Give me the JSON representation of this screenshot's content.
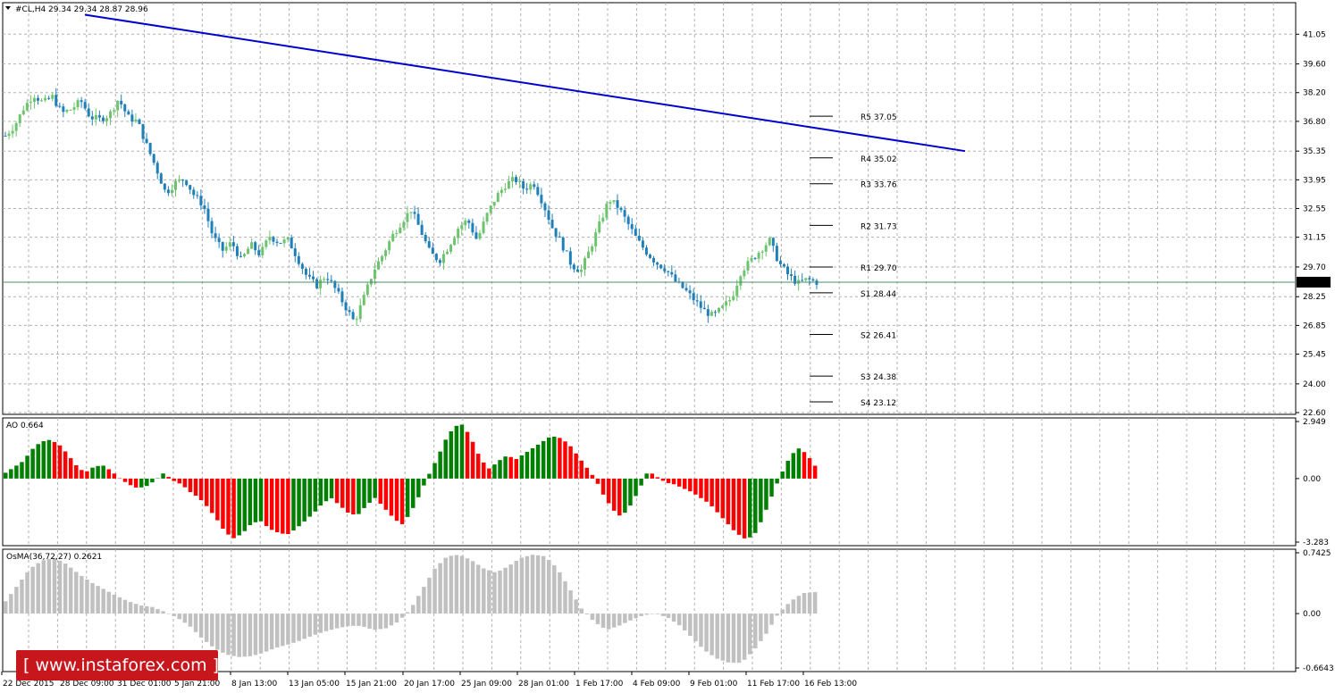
{
  "instrument_header": "#CL,H4  29.34 29.34 28.87 28.96",
  "last_price_label": "28.96",
  "logo_text": "[ www.instaforex.com ]",
  "colors": {
    "bull_candle": "#6ec36e",
    "bear_candle": "#1f7fb8",
    "trendline": "#0000cc",
    "ao_up": "#008000",
    "ao_down": "#ff0000",
    "osma": "#c0c0c0",
    "logo_bg": "#c8161d"
  },
  "pivots": [
    {
      "label": "R5 37.05",
      "value": 37.05
    },
    {
      "label": "R4 35.02",
      "value": 35.02
    },
    {
      "label": "R3 33.76",
      "value": 33.76
    },
    {
      "label": "R2 31.73",
      "value": 31.73
    },
    {
      "label": "R1 29.70",
      "value": 29.7
    },
    {
      "label": "S1 28.44",
      "value": 28.44
    },
    {
      "label": "S2 26.41",
      "value": 26.41
    },
    {
      "label": "S3 24.38",
      "value": 24.38
    },
    {
      "label": "S4 23.12",
      "value": 23.12
    }
  ],
  "x_axis_labels": [
    "22 Dec 2015",
    "28 Dec 09:00",
    "31 Dec 01:00",
    "5 Jan 21:00",
    "8 Jan 13:00",
    "13 Jan 05:00",
    "15 Jan 21:00",
    "20 Jan 17:00",
    "25 Jan 09:00",
    "28 Jan 01:00",
    "1 Feb 17:00",
    "4 Feb 09:00",
    "9 Feb 01:00",
    "11 Feb 17:00",
    "16 Feb 13:00"
  ],
  "chart_data": [
    {
      "type": "candlestick",
      "title": "#CL,H4  29.34 29.34 28.87 28.96",
      "ylim": [
        22.6,
        42.5
      ],
      "y_ticks": [
        "41.05",
        "39.60",
        "38.20",
        "36.80",
        "35.35",
        "33.95",
        "32.55",
        "31.15",
        "29.70",
        "28.25",
        "26.85",
        "25.45",
        "24.00",
        "22.60"
      ],
      "last_price": 28.96,
      "trendline": {
        "start": 42.0,
        "end": 35.35
      },
      "close_path": [
        36.1,
        36.6,
        37.5,
        38.1,
        37.7,
        38.0,
        37.2,
        37.4,
        37.8,
        37.0,
        36.9,
        37.1,
        37.9,
        37.0,
        36.8,
        35.6,
        34.5,
        33.3,
        33.8,
        34.0,
        33.2,
        32.7,
        31.2,
        30.5,
        30.9,
        30.0,
        30.8,
        30.3,
        31.2,
        30.9,
        31.0,
        30.1,
        29.2,
        28.8,
        29.3,
        28.6,
        27.8,
        27.0,
        28.2,
        29.5,
        30.3,
        31.2,
        31.9,
        32.5,
        31.5,
        30.4,
        30.0,
        30.7,
        31.6,
        32.0,
        31.0,
        32.2,
        33.1,
        33.7,
        34.0,
        33.5,
        33.8,
        32.8,
        31.6,
        30.8,
        29.8,
        29.5,
        30.6,
        31.8,
        33.0,
        32.6,
        31.8,
        31.0,
        30.4,
        29.9,
        29.6,
        29.0,
        28.6,
        28.1,
        27.6,
        27.3,
        27.7,
        28.2,
        29.5,
        30.0,
        30.5,
        31.0,
        29.9,
        29.3,
        28.9,
        29.1,
        28.96
      ]
    },
    {
      "type": "bar",
      "title": "AO 0.664",
      "ylim": [
        -3.283,
        2.949
      ],
      "y_ticks": [
        "2.949",
        "0.00",
        "-3.283"
      ],
      "value_path": [
        0.3,
        0.6,
        0.9,
        1.5,
        1.9,
        2.0,
        1.8,
        1.3,
        0.7,
        0.3,
        0.6,
        0.7,
        0.4,
        0.0,
        -0.3,
        -0.5,
        -0.4,
        -0.1,
        0.3,
        -0.1,
        -0.3,
        -0.7,
        -1.0,
        -1.5,
        -2.1,
        -2.8,
        -3.1,
        -2.8,
        -2.3,
        -2.2,
        -2.6,
        -2.8,
        -2.9,
        -2.6,
        -2.2,
        -1.8,
        -1.3,
        -1.0,
        -1.4,
        -1.8,
        -1.9,
        -1.4,
        -1.0,
        -1.5,
        -2.0,
        -2.4,
        -1.8,
        -0.9,
        0.1,
        1.0,
        2.0,
        2.7,
        2.8,
        2.0,
        1.0,
        0.5,
        0.9,
        1.2,
        1.0,
        1.3,
        1.6,
        1.9,
        2.2,
        2.1,
        1.8,
        1.2,
        0.6,
        0.0,
        -0.9,
        -1.6,
        -2.0,
        -1.4,
        -0.6,
        0.4,
        0.1,
        -0.2,
        -0.3,
        -0.5,
        -0.7,
        -1.0,
        -1.3,
        -1.8,
        -2.3,
        -2.8,
        -3.1,
        -3.0,
        -2.1,
        -1.0,
        0.1,
        1.0,
        1.6,
        1.3,
        0.664
      ]
    },
    {
      "type": "bar",
      "title": "OsMA(36,72,27) 0.2621",
      "ylim": [
        -0.6643,
        0.7425
      ],
      "y_ticks": [
        "0.7425",
        "0.00",
        "-0.6643"
      ],
      "value_path": [
        0.15,
        0.35,
        0.55,
        0.65,
        0.68,
        0.6,
        0.48,
        0.38,
        0.3,
        0.22,
        0.15,
        0.1,
        0.08,
        0.02,
        -0.05,
        -0.15,
        -0.3,
        -0.42,
        -0.5,
        -0.53,
        -0.52,
        -0.48,
        -0.42,
        -0.38,
        -0.33,
        -0.27,
        -0.22,
        -0.18,
        -0.15,
        -0.15,
        -0.2,
        -0.18,
        -0.1,
        0.05,
        0.3,
        0.55,
        0.7,
        0.72,
        0.65,
        0.55,
        0.5,
        0.58,
        0.68,
        0.72,
        0.7,
        0.55,
        0.3,
        0.05,
        -0.1,
        -0.2,
        -0.15,
        -0.08,
        -0.02,
        0.0,
        -0.05,
        -0.15,
        -0.3,
        -0.45,
        -0.55,
        -0.6,
        -0.6,
        -0.45,
        -0.25,
        0.0,
        0.15,
        0.25,
        0.2621
      ]
    }
  ]
}
